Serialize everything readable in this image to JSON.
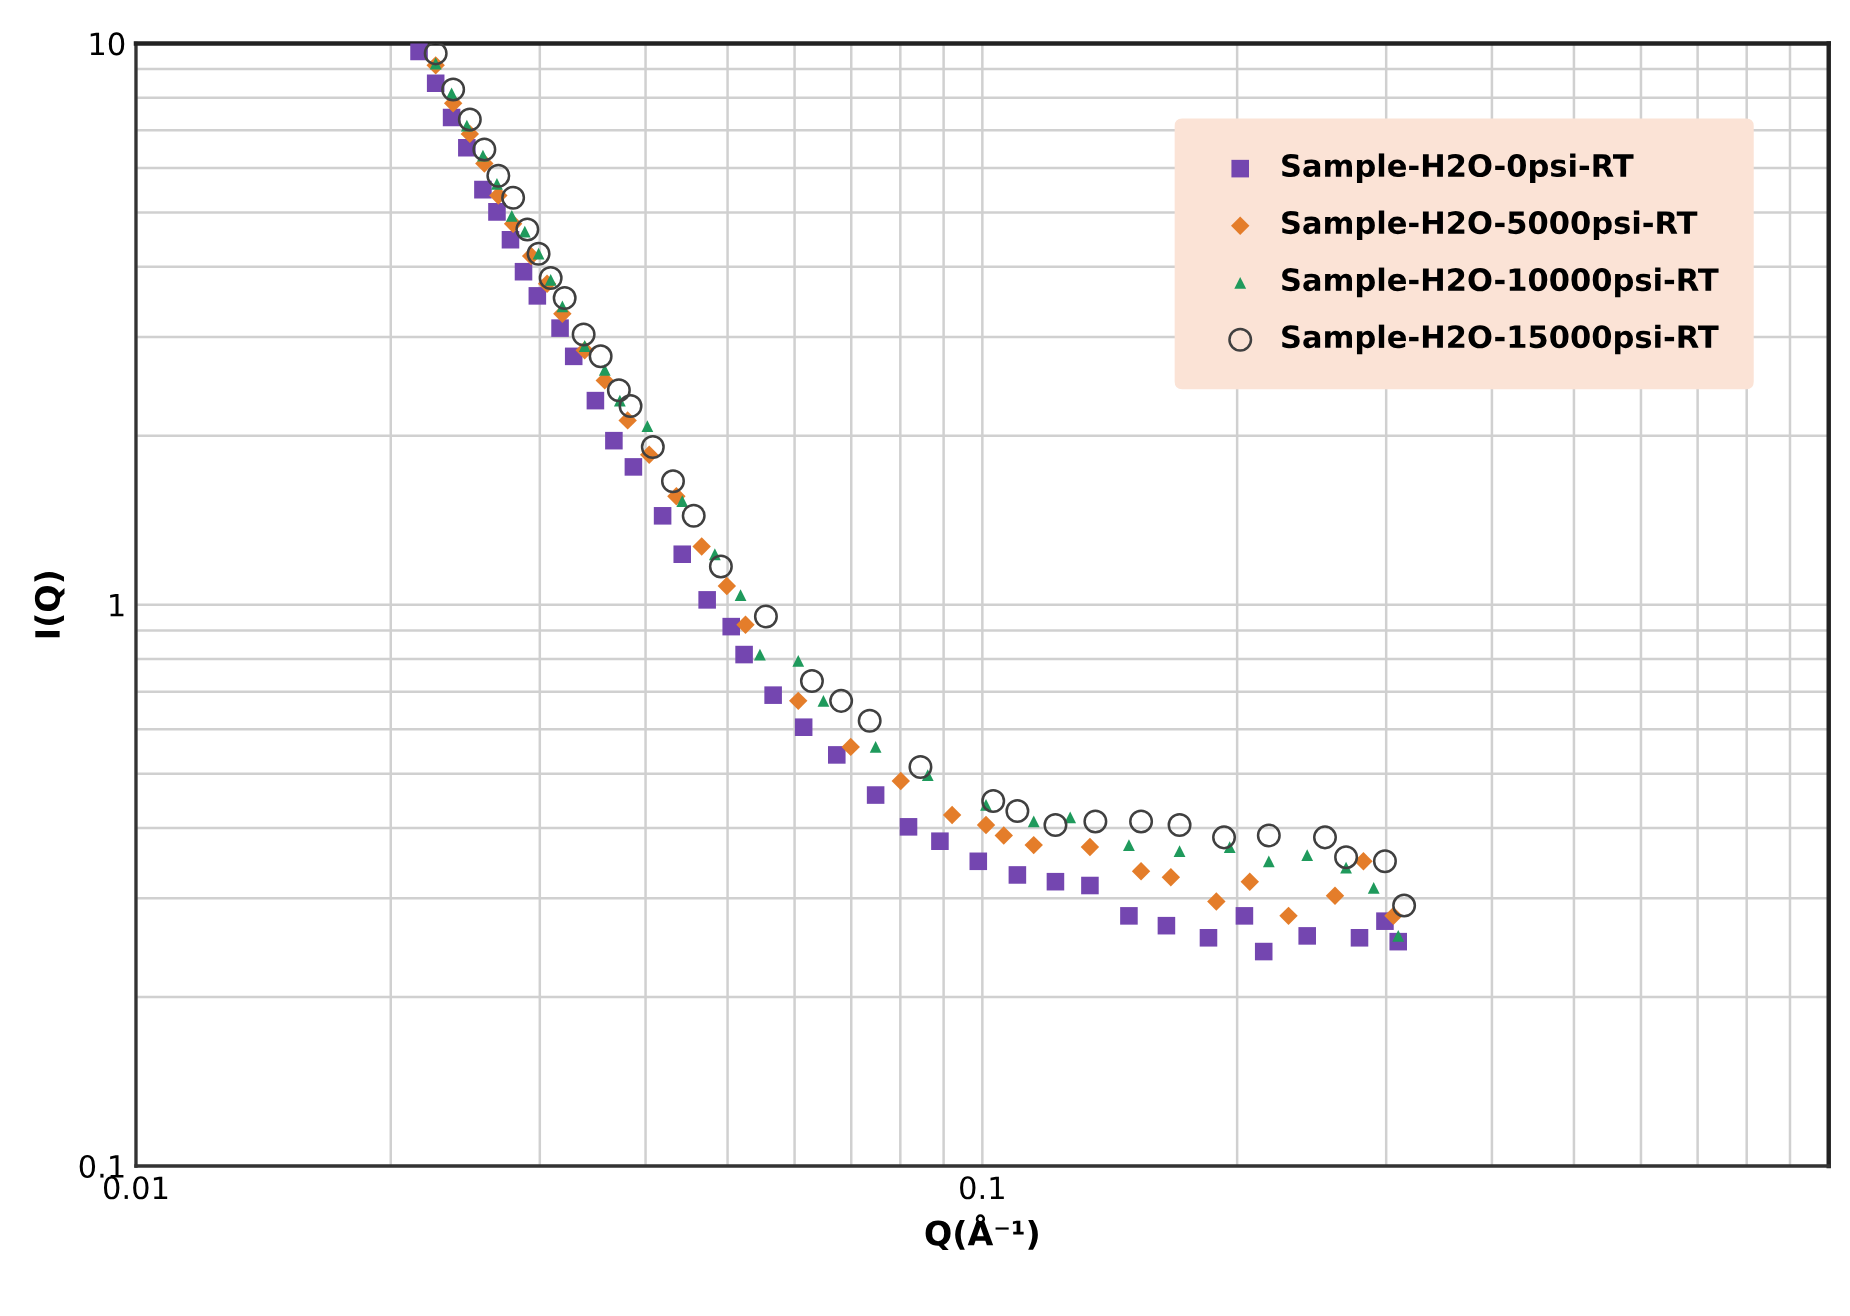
{
  "chart_data": {
    "type": "scatter",
    "xlabel": "Q(Å⁻¹)",
    "ylabel": "I(Q)",
    "log": "xy",
    "grid": true,
    "legend": "top right",
    "xlim": [
      0.01,
      1
    ],
    "xticks": [
      0.01,
      0.1
    ],
    "ylim": [
      0.1,
      10
    ],
    "yticks": [
      0.1,
      1,
      10
    ],
    "series": [
      {
        "name": "Sample-H2O-0psi-RT",
        "color": "#7446b0",
        "marker": "square",
        "x": [
          0.0216,
          0.0226,
          0.0236,
          0.0246,
          0.0257,
          0.0267,
          0.0277,
          0.0287,
          0.0298,
          0.0317,
          0.0329,
          0.0349,
          0.0367,
          0.0387,
          0.0419,
          0.0442,
          0.0473,
          0.0505,
          0.0523,
          0.0566,
          0.0615,
          0.0673,
          0.0748,
          0.0818,
          0.0891,
          0.0989,
          0.11,
          0.122,
          0.134,
          0.149,
          0.165,
          0.185,
          0.204,
          0.215,
          0.242,
          0.279,
          0.299,
          0.31
        ],
        "values": [
          9.68,
          8.49,
          7.38,
          6.52,
          5.49,
          5.01,
          4.47,
          3.92,
          3.55,
          3.11,
          2.77,
          2.31,
          1.96,
          1.76,
          1.44,
          1.23,
          1.02,
          0.914,
          0.815,
          0.69,
          0.605,
          0.54,
          0.458,
          0.402,
          0.379,
          0.349,
          0.33,
          0.321,
          0.316,
          0.279,
          0.268,
          0.255,
          0.279,
          0.241,
          0.257,
          0.255,
          0.273,
          0.251
        ]
      },
      {
        "name": "Sample-H2O-5000psi-RT",
        "color": "#e47d2a",
        "marker": "diamond",
        "x": [
          0.0226,
          0.0237,
          0.0248,
          0.0258,
          0.0268,
          0.0279,
          0.0293,
          0.0306,
          0.0319,
          0.0339,
          0.0358,
          0.0381,
          0.0404,
          0.0435,
          0.0466,
          0.0499,
          0.0525,
          0.0606,
          0.0699,
          0.0801,
          0.0921,
          0.101,
          0.106,
          0.115,
          0.134,
          0.154,
          0.167,
          0.189,
          0.207,
          0.23,
          0.261,
          0.282,
          0.306
        ],
        "values": [
          9.14,
          7.82,
          6.9,
          6.11,
          5.36,
          4.77,
          4.18,
          3.73,
          3.3,
          2.84,
          2.51,
          2.13,
          1.85,
          1.56,
          1.27,
          1.08,
          0.921,
          0.674,
          0.558,
          0.485,
          0.422,
          0.405,
          0.388,
          0.373,
          0.37,
          0.335,
          0.327,
          0.296,
          0.321,
          0.279,
          0.303,
          0.349,
          0.279
        ]
      },
      {
        "name": "Sample-H2O-10000psi-RT",
        "color": "#1f9a5c",
        "marker": "triangle",
        "x": [
          0.0226,
          0.0236,
          0.0246,
          0.0257,
          0.0267,
          0.0278,
          0.0288,
          0.0299,
          0.0309,
          0.0319,
          0.0339,
          0.0358,
          0.0373,
          0.0402,
          0.0442,
          0.0483,
          0.0518,
          0.0546,
          0.0606,
          0.0649,
          0.0748,
          0.0862,
          0.101,
          0.115,
          0.127,
          0.149,
          0.171,
          0.196,
          0.218,
          0.242,
          0.269,
          0.29,
          0.31
        ],
        "values": [
          9.21,
          8.15,
          7.14,
          6.31,
          5.62,
          4.93,
          4.62,
          4.22,
          3.79,
          3.4,
          2.89,
          2.62,
          2.31,
          2.08,
          1.53,
          1.23,
          1.04,
          0.815,
          0.794,
          0.674,
          0.558,
          0.497,
          0.44,
          0.411,
          0.418,
          0.373,
          0.364,
          0.37,
          0.349,
          0.358,
          0.34,
          0.313,
          0.257
        ]
      },
      {
        "name": "Sample-H2O-15000psi-RT",
        "color": "#404040",
        "marker": "circle",
        "x": [
          0.0226,
          0.0237,
          0.0248,
          0.0258,
          0.0268,
          0.0279,
          0.029,
          0.0299,
          0.0309,
          0.0321,
          0.0338,
          0.0354,
          0.0372,
          0.0384,
          0.0408,
          0.0431,
          0.0456,
          0.0491,
          0.0555,
          0.0629,
          0.0681,
          0.0736,
          0.0845,
          0.103,
          0.11,
          0.122,
          0.136,
          0.154,
          0.171,
          0.193,
          0.218,
          0.254,
          0.269,
          0.299,
          0.315
        ],
        "values": [
          9.6,
          8.28,
          7.32,
          6.47,
          5.81,
          5.31,
          4.66,
          4.22,
          3.82,
          3.52,
          3.03,
          2.77,
          2.41,
          2.26,
          1.91,
          1.66,
          1.44,
          1.17,
          0.953,
          0.731,
          0.674,
          0.621,
          0.514,
          0.447,
          0.429,
          0.405,
          0.411,
          0.411,
          0.405,
          0.385,
          0.388,
          0.385,
          0.355,
          0.349,
          0.291
        ]
      }
    ]
  }
}
